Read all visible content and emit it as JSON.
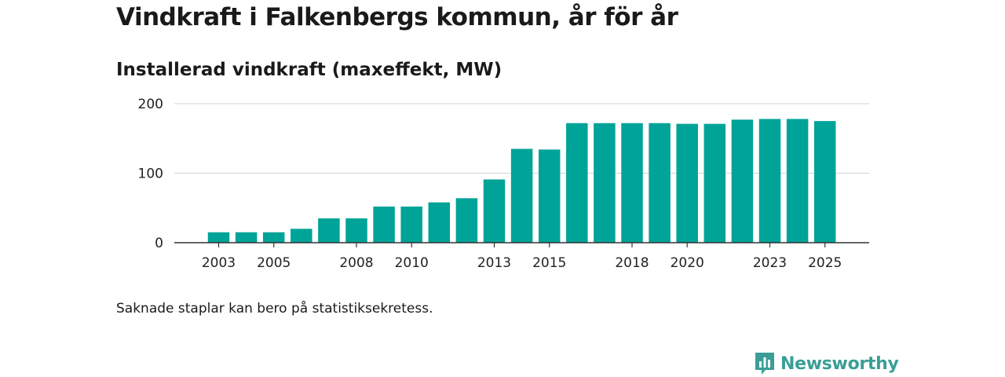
{
  "header": {
    "title": "Vindkraft i Falkenbergs kommun, år för år",
    "subtitle": "Installerad vindkraft (maxeffekt, MW)"
  },
  "footer": {
    "note": "Saknade staplar kan bero på statistiksekretess.",
    "brand": "Newsworthy"
  },
  "colors": {
    "bar": "#00a398",
    "brand": "#3a9e97"
  },
  "chart_data": {
    "type": "bar",
    "title": "Vindkraft i Falkenbergs kommun, år för år",
    "subtitle": "Installerad vindkraft (maxeffekt, MW)",
    "xlabel": "",
    "ylabel": "",
    "ylim": [
      0,
      200
    ],
    "yticks": [
      0,
      100,
      200
    ],
    "grid": true,
    "categories": [
      2003,
      2004,
      2005,
      2006,
      2007,
      2008,
      2009,
      2010,
      2011,
      2012,
      2013,
      2014,
      2015,
      2016,
      2017,
      2018,
      2019,
      2020,
      2021,
      2022,
      2023,
      2024,
      2025
    ],
    "xtick_labels": [
      "2003",
      "2005",
      "2008",
      "2010",
      "2013",
      "2015",
      "2018",
      "2020",
      "2023",
      "2025"
    ],
    "values": [
      15,
      15,
      15,
      20,
      35,
      35,
      52,
      52,
      58,
      64,
      91,
      135,
      134,
      172,
      172,
      172,
      172,
      171,
      171,
      177,
      178,
      178,
      175
    ]
  }
}
